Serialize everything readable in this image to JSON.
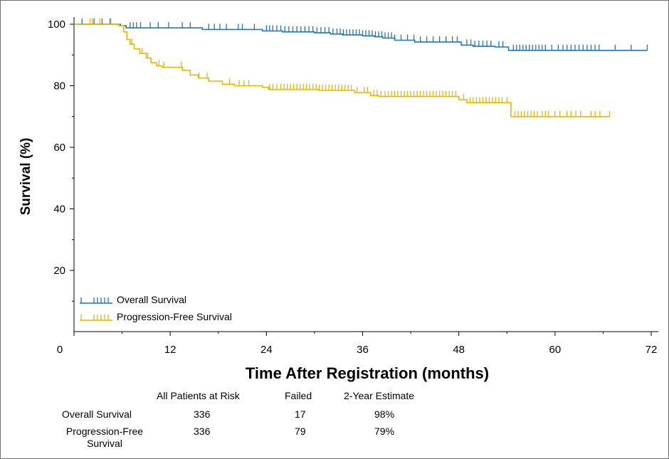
{
  "chart_data": {
    "type": "line",
    "xlabel": "Time After Registration (months)",
    "ylabel": "Survival (%)",
    "xlim": [
      0,
      72
    ],
    "ylim": [
      0,
      100
    ],
    "x_ticks": [
      0,
      12,
      24,
      36,
      48,
      60,
      72
    ],
    "y_ticks": [
      20,
      40,
      60,
      80,
      100
    ],
    "x_tick_labels": [
      "0",
      "12",
      "24",
      "36",
      "48",
      "60",
      "72"
    ],
    "y_tick_labels": [
      "20",
      "40",
      "60",
      "80",
      "100"
    ],
    "legend_position": "bottom-left",
    "grid": false,
    "series": [
      {
        "name": "Overall Survival",
        "color": "#1f77b4",
        "step_points": [
          [
            0,
            100
          ],
          [
            5.8,
            99.5
          ],
          [
            6.5,
            98.8
          ],
          [
            16,
            98.3
          ],
          [
            23.5,
            97.8
          ],
          [
            26,
            97.5
          ],
          [
            30,
            97.2
          ],
          [
            32,
            96.8
          ],
          [
            33.5,
            96.5
          ],
          [
            36,
            96.2
          ],
          [
            37.5,
            95.9
          ],
          [
            38.5,
            95.5
          ],
          [
            40,
            94.8
          ],
          [
            42.5,
            94.2
          ],
          [
            48.3,
            93.2
          ],
          [
            49.8,
            92.8
          ],
          [
            52.5,
            92.6
          ],
          [
            54.2,
            91.5
          ],
          [
            71.5,
            91.5
          ]
        ],
        "censor_times": [
          1,
          2.5,
          3.5,
          4.5,
          7,
          7.4,
          7.8,
          8.3,
          9.5,
          10.5,
          11.8,
          13.5,
          14.5,
          16.8,
          17.5,
          18.2,
          19,
          20.5,
          21,
          22.5,
          24,
          24.4,
          24.8,
          25.3,
          25.8,
          26.3,
          26.8,
          27.3,
          27.8,
          28.3,
          28.8,
          29.3,
          29.8,
          30.3,
          30.8,
          31.3,
          31.8,
          32.3,
          32.8,
          33.2,
          33.6,
          34,
          34.4,
          34.8,
          35.2,
          35.6,
          36,
          36.4,
          36.8,
          37.2,
          37.6,
          38,
          38.4,
          38.8,
          39.2,
          39.6,
          40,
          40.8,
          41.6,
          42.4,
          43.2,
          44,
          44.8,
          45.6,
          46.4,
          47.2,
          47.8,
          49,
          49.5,
          50,
          50.5,
          51,
          51.5,
          52,
          53,
          53.5,
          54.8,
          55.2,
          55.6,
          56,
          56.4,
          56.8,
          57.2,
          57.6,
          58,
          58.4,
          58.8,
          59.6,
          60.4,
          61,
          61.5,
          62,
          62.5,
          63,
          63.5,
          64,
          64.5,
          65,
          65.5,
          67.5,
          69.5,
          71.5
        ],
        "end_x": 71.5
      },
      {
        "name": "Progression-Free Survival",
        "color": "#e6b800",
        "step_points": [
          [
            0,
            100
          ],
          [
            5.6,
            99.5
          ],
          [
            6.2,
            97.5
          ],
          [
            6.6,
            95
          ],
          [
            7,
            93.5
          ],
          [
            7.5,
            92
          ],
          [
            8.2,
            90.5
          ],
          [
            9,
            89
          ],
          [
            9.6,
            87.5
          ],
          [
            10.3,
            86.5
          ],
          [
            11,
            86
          ],
          [
            13.5,
            85
          ],
          [
            14.5,
            83.5
          ],
          [
            15.5,
            82.5
          ],
          [
            16.8,
            81.5
          ],
          [
            18.5,
            80.5
          ],
          [
            20,
            80
          ],
          [
            23.5,
            79.5
          ],
          [
            24.3,
            78.8
          ],
          [
            30.5,
            78.5
          ],
          [
            35,
            77.8
          ],
          [
            37,
            76.8
          ],
          [
            38,
            76.5
          ],
          [
            48,
            75.5
          ],
          [
            49,
            74.5
          ],
          [
            54.5,
            70
          ],
          [
            66.8,
            70
          ]
        ],
        "censor_times": [
          2,
          2.3,
          3.2,
          4.6,
          7.2,
          8.5,
          9.2,
          10.6,
          11.2,
          13.4,
          15.6,
          16.6,
          19.4,
          20.6,
          21.2,
          21.8,
          24.4,
          24.8,
          25.3,
          25.8,
          26.2,
          26.6,
          27,
          27.4,
          27.8,
          28.2,
          28.6,
          29,
          29.4,
          29.8,
          30.2,
          30.6,
          31,
          31.4,
          31.8,
          32.2,
          32.6,
          33,
          33.4,
          33.8,
          34.2,
          34.6,
          35.3,
          36.2,
          36.6,
          37.4,
          37.8,
          38.3,
          38.8,
          39.2,
          39.6,
          40,
          40.4,
          40.8,
          41.2,
          41.6,
          42,
          42.4,
          42.8,
          43.2,
          43.6,
          44,
          44.4,
          44.8,
          45.2,
          45.6,
          46,
          46.4,
          46.8,
          47.2,
          47.6,
          48.6,
          49.4,
          49.8,
          50.2,
          50.6,
          51,
          51.4,
          51.8,
          52.2,
          52.6,
          53,
          53.4,
          54,
          55,
          55.4,
          55.8,
          56.2,
          56.6,
          57,
          57.4,
          57.8,
          58.4,
          58.8,
          59.2,
          60,
          60.6,
          61.5,
          62,
          62.6,
          63.2,
          64.5,
          65,
          65.6,
          66.8
        ],
        "end_x": 66.8
      }
    ],
    "risk_table": {
      "headers": [
        "All Patients at Risk",
        "Failed",
        "2-Year Estimate"
      ],
      "rows": [
        {
          "label": "Overall Survival",
          "at_risk": "336",
          "failed": "17",
          "estimate": "98%"
        },
        {
          "label_line1": "Progression-Free",
          "label_line2": "Survival",
          "at_risk": "336",
          "failed": "79",
          "estimate": "79%"
        }
      ]
    }
  }
}
